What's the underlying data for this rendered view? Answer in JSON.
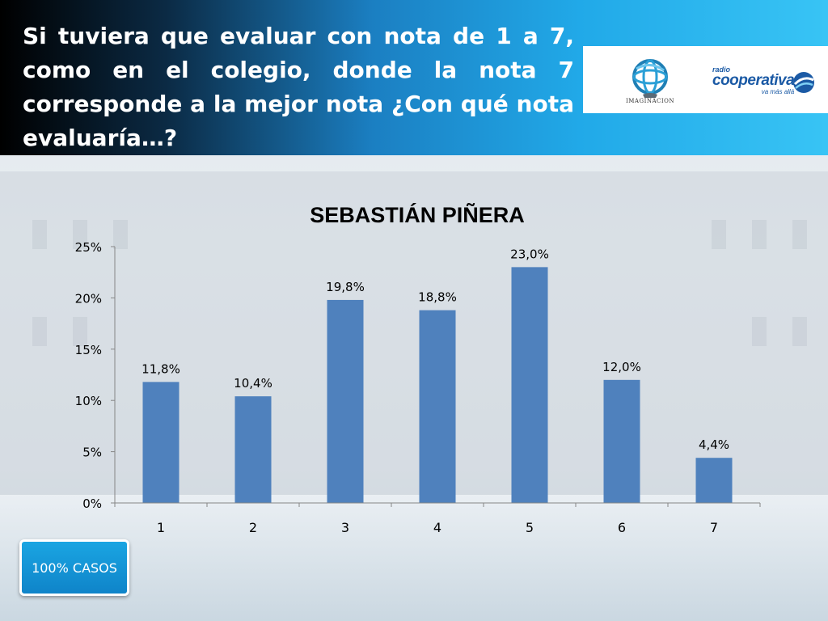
{
  "header": {
    "title": "Si tuviera que evaluar con nota de 1 a 7, como en el colegio, donde la nota 7 corresponde a la mejor nota ¿Con qué nota evaluaría…?"
  },
  "logos": {
    "imaginacion": {
      "icon": "globe-logo-icon",
      "text": "IMAGINACION"
    },
    "cooperativa": {
      "radio": "radio",
      "name": "cooperativa",
      "slogan": "va más allá",
      "icon": "swoosh-logo-icon"
    }
  },
  "chart_data": {
    "type": "bar",
    "title": "SEBASTIÁN PIÑERA",
    "categories": [
      "1",
      "2",
      "3",
      "4",
      "5",
      "6",
      "7"
    ],
    "values": [
      11.8,
      10.4,
      19.8,
      18.8,
      23.0,
      12.0,
      4.4
    ],
    "data_labels": [
      "11,8%",
      "10,4%",
      "19,8%",
      "18,8%",
      "23,0%",
      "12,0%",
      "4,4%"
    ],
    "y_ticks": [
      0,
      5,
      10,
      15,
      20,
      25
    ],
    "y_tick_labels": [
      "0%",
      "5%",
      "10%",
      "15%",
      "20%",
      "25%"
    ],
    "ylim": [
      0,
      25
    ],
    "xlabel": "",
    "ylabel": "",
    "grid": false,
    "bar_color": "#4f81bd"
  },
  "footer": {
    "cases_label": "100% CASOS"
  },
  "colors": {
    "title_text": "#ffffff",
    "button": "#1493d6"
  }
}
